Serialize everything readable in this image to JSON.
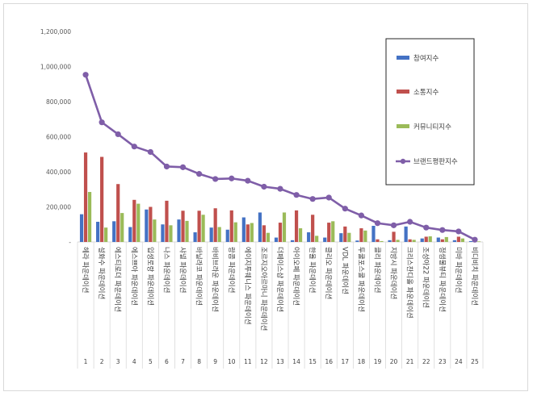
{
  "chart_data": {
    "type": "bar",
    "categories": [
      "헤라 파운데이션",
      "설화수 파운데이션",
      "에스티로더 파운데이션",
      "에스쁘아 파운데이션",
      "입생로랑 파운데이션",
      "나스 파운데이션",
      "샤넬 파운데이션",
      "바닐라코 파운데이션",
      "바비브라운 파운데이션",
      "랑콤 파운데이션",
      "에이지투웨니스 파운데이션",
      "조르지오아르마니 파운데이션",
      "더페이스샵 파운데이션",
      "아이오페 파운데이션",
      "한율 파운데이션",
      "클리오 파운데이션",
      "VDL 파운데이션",
      "투쿨포스쿨 파운데이션",
      "클리 파운데이션",
      "지방시 파운데이션",
      "크리스찬디올 파운데이션",
      "조성아22 파운데이션",
      "정샘물뷰티 파운데이션",
      "미바 파운데이션",
      "비디비치 파운데이션"
    ],
    "numbers": [
      "1",
      "2",
      "3",
      "4",
      "5",
      "6",
      "7",
      "8",
      "9",
      "10",
      "11",
      "12",
      "13",
      "14",
      "15",
      "16",
      "17",
      "18",
      "19",
      "20",
      "21",
      "22",
      "23",
      "24",
      "25"
    ],
    "series": [
      {
        "name": "참여지수",
        "kind": "bar",
        "color": "#4472c4",
        "values": [
          158000,
          115000,
          118000,
          85000,
          185000,
          100000,
          128000,
          55000,
          82000,
          70000,
          140000,
          168000,
          25000,
          10000,
          55000,
          25000,
          50000,
          8000,
          92000,
          10000,
          88000,
          20000,
          25000,
          10000,
          5000
        ]
      },
      {
        "name": "소통지수",
        "kind": "bar",
        "color": "#c0504d",
        "values": [
          510000,
          485000,
          330000,
          240000,
          200000,
          235000,
          178000,
          178000,
          192000,
          180000,
          100000,
          95000,
          110000,
          180000,
          155000,
          110000,
          88000,
          78000,
          15000,
          58000,
          15000,
          30000,
          15000,
          30000,
          5000
        ]
      },
      {
        "name": "커뮤니티지수",
        "kind": "bar",
        "color": "#9bbb59",
        "values": [
          285000,
          82000,
          165000,
          218000,
          128000,
          95000,
          120000,
          155000,
          85000,
          112000,
          108000,
          52000,
          168000,
          78000,
          35000,
          118000,
          52000,
          65000,
          5000,
          12000,
          12000,
          32000,
          28000,
          20000,
          3000
        ]
      },
      {
        "name": "브랜드평판지수",
        "kind": "line",
        "color": "#7f5ea8",
        "values": [
          953000,
          682000,
          614000,
          544000,
          513000,
          430000,
          426000,
          388000,
          359000,
          362000,
          349000,
          315000,
          303000,
          268000,
          245000,
          253000,
          190000,
          151000,
          107000,
          95000,
          115000,
          82000,
          68000,
          60000,
          13000
        ]
      }
    ],
    "ylim": [
      0,
      1200000
    ],
    "yticks": [
      "-",
      "200,000",
      "400,000",
      "600,000",
      "800,000",
      "1,000,000",
      "1,200,000"
    ],
    "grid": false,
    "legend_position": "top-right",
    "title": "",
    "xlabel": "",
    "ylabel": ""
  }
}
